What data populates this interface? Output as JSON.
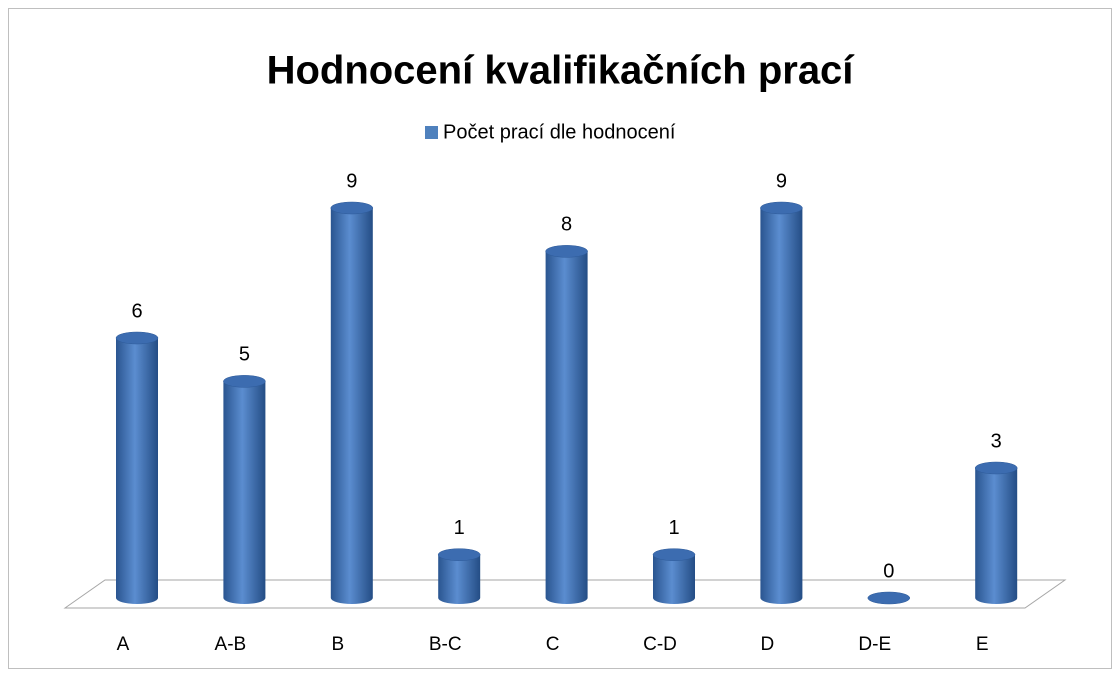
{
  "chart_data": {
    "type": "bar",
    "title": "Hodnocení kvalifikačních prací",
    "categories": [
      "A",
      "A-B",
      "B",
      "B-C",
      "C",
      "C-D",
      "D",
      "D-E",
      "E"
    ],
    "series": [
      {
        "name": "Počet prací dle hodnocení",
        "color": "#4f81bd",
        "values": [
          6,
          5,
          9,
          1,
          8,
          1,
          9,
          0,
          3
        ]
      }
    ],
    "legend": "top"
  }
}
